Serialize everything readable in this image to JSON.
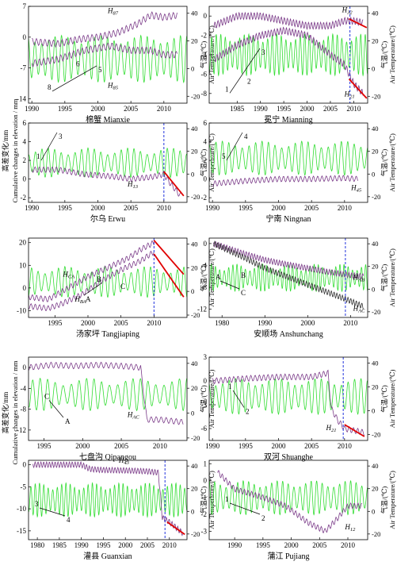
{
  "figure": {
    "left_axis_label_cn": "高差变化/mm",
    "left_axis_label_en": "Cumulative changes in elevation / mm",
    "right_axis_label_cn": "气温/(℃)",
    "right_axis_label_en": "Air Temperature/(℃)"
  },
  "colors": {
    "temp": "#33dd33",
    "elev": "#7a3a88",
    "elev2": "#333333",
    "trend": "#e00000",
    "marker": "#2233dd"
  },
  "chart_data": [
    {
      "type": "line",
      "title": "棉蟹 Mianxie",
      "xlim": [
        1989.5,
        2013.5
      ],
      "xticks": [
        1990,
        1995,
        2000,
        2005,
        2010
      ],
      "ylim": [
        -15,
        7
      ],
      "yticks": [
        -14,
        -7,
        0,
        7
      ],
      "t_lim": [
        -25,
        45
      ],
      "t_ticks": [
        -20,
        0,
        20,
        40
      ],
      "series": [
        {
          "key": "H87",
          "name": "H87",
          "points": [
            [
              1990,
              -1
            ],
            [
              1994,
              -1.5
            ],
            [
              1997,
              -0.5
            ],
            [
              2000,
              0
            ],
            [
              2003,
              1
            ],
            [
              2006,
              3
            ],
            [
              2008,
              5
            ],
            [
              2010,
              4.5
            ],
            [
              2012,
              5
            ]
          ]
        },
        {
          "key": "H85",
          "name": "H85",
          "points": [
            [
              1990,
              -6
            ],
            [
              1994,
              -5
            ],
            [
              1998,
              -3
            ],
            [
              2002,
              -2
            ],
            [
              2005,
              -3
            ],
            [
              2008,
              -3
            ],
            [
              2010,
              -4
            ],
            [
              2012,
              -4
            ]
          ]
        }
      ],
      "temp": {
        "center": 7,
        "amp": 14
      },
      "trend_lines": [],
      "marker_x": null,
      "labels": [
        {
          "text": "H87",
          "x": 2001.5,
          "y": 5.5
        },
        {
          "text": "H85",
          "x": 2001.5,
          "y": -11.5
        }
      ],
      "annotations": [
        "8",
        "6",
        "5"
      ]
    },
    {
      "type": "line",
      "title": "冕宁 Mianning",
      "xlim": [
        1979,
        2013
      ],
      "xticks": [
        1985,
        1990,
        1995,
        2000,
        2005,
        2010
      ],
      "ylim": [
        -9,
        1
      ],
      "yticks": [
        -8,
        -6,
        -4,
        -2,
        0
      ],
      "t_lim": [
        -25,
        45
      ],
      "t_ticks": [
        -20,
        0,
        20,
        40
      ],
      "series": [
        {
          "key": "H32",
          "name": "H32",
          "points": [
            [
              1980,
              -1
            ],
            [
              1985,
              0
            ],
            [
              1990,
              0
            ],
            [
              1995,
              -0.5
            ],
            [
              2000,
              -1
            ],
            [
              2005,
              -1
            ],
            [
              2008,
              -0.5
            ],
            [
              2010,
              -0.5
            ],
            [
              2012,
              -0.7
            ]
          ]
        },
        {
          "key": "H21",
          "name": "H21",
          "points": [
            [
              1980,
              -4.5
            ],
            [
              1985,
              -3
            ],
            [
              1990,
              -2
            ],
            [
              1995,
              -1.5
            ],
            [
              2000,
              -2
            ],
            [
              2005,
              -4
            ],
            [
              2008,
              -5
            ],
            [
              2010,
              -7
            ],
            [
              2012,
              -8
            ]
          ]
        }
      ],
      "temp": {
        "center": 10,
        "amp": 12
      },
      "trend_lines": [
        {
          "x1": 2009,
          "y1": -0.3,
          "x2": 2012.8,
          "y2": -1.2
        },
        {
          "x1": 2009,
          "y1": -6.5,
          "x2": 2012.8,
          "y2": -8.5
        }
      ],
      "marker_x": 2009.2,
      "labels": [
        {
          "text": "H32",
          "x": 2007.5,
          "y": 0.4
        },
        {
          "text": "H21",
          "x": 2008,
          "y": -8.3
        }
      ],
      "annotations": [
        "1",
        "2",
        "3"
      ]
    },
    {
      "type": "line",
      "title": "尔乌 Erwu",
      "xlim": [
        1989.5,
        2013.5
      ],
      "xticks": [
        1990,
        1995,
        2000,
        2005,
        2010
      ],
      "ylim": [
        -2.5,
        6
      ],
      "yticks": [
        -2,
        0,
        2,
        4,
        6
      ],
      "t_lim": [
        -25,
        45
      ],
      "t_ticks": [
        -20,
        0,
        20,
        40
      ],
      "series": [
        {
          "key": "H13",
          "name": "H13",
          "points": [
            [
              1990,
              1
            ],
            [
              1994,
              1
            ],
            [
              1998,
              0.5
            ],
            [
              2002,
              0.3
            ],
            [
              2005,
              0
            ],
            [
              2008,
              0.2
            ],
            [
              2010,
              0.5
            ],
            [
              2011,
              -0.5
            ],
            [
              2012.5,
              -1.8
            ]
          ]
        }
      ],
      "temp": {
        "center": 10,
        "amp": 10
      },
      "trend_lines": [
        {
          "x1": 2010,
          "y1": 0.8,
          "x2": 2013,
          "y2": -1.8
        }
      ],
      "marker_x": 2010,
      "labels": [
        {
          "text": "H13",
          "x": 2004.5,
          "y": -0.8
        }
      ],
      "annotations": [
        "1",
        "3"
      ]
    },
    {
      "type": "line",
      "title": "宁南 Ningnan",
      "xlim": [
        1989.5,
        2013.5
      ],
      "xticks": [
        1990,
        1995,
        2000,
        2005,
        2010
      ],
      "ylim": [
        -2.5,
        6
      ],
      "yticks": [
        -2,
        0,
        2,
        4,
        6
      ],
      "t_lim": [
        -25,
        45
      ],
      "t_ticks": [
        -20,
        0,
        20,
        40
      ],
      "series": [
        {
          "key": "H45",
          "name": "H45",
          "points": [
            [
              1990,
              -0.5
            ],
            [
              1995,
              -0.2
            ],
            [
              2000,
              0
            ],
            [
              2005,
              0
            ],
            [
              2010,
              0.1
            ],
            [
              2012,
              0
            ]
          ]
        }
      ],
      "temp": {
        "center": 14,
        "amp": 12
      },
      "trend_lines": [],
      "marker_x": null,
      "labels": [
        {
          "text": "H45",
          "x": 2011,
          "y": -1.2
        }
      ],
      "annotations": [
        "5",
        "4"
      ]
    },
    {
      "type": "line",
      "title": "汤家坪 Tangjiaping",
      "xlim": [
        1991,
        2015
      ],
      "xticks": [
        1995,
        2000,
        2005,
        2010
      ],
      "ylim": [
        -13,
        22
      ],
      "yticks": [
        -10,
        0,
        10,
        20
      ],
      "t_lim": [
        -22,
        45
      ],
      "t_ticks": [
        -20,
        0,
        20,
        40
      ],
      "series": [
        {
          "key": "HCA",
          "name": "HCA",
          "points": [
            [
              1991,
              -4
            ],
            [
              1994,
              -5
            ],
            [
              1997,
              0
            ],
            [
              2000,
              5
            ],
            [
              2003,
              9
            ],
            [
              2006,
              13
            ],
            [
              2008,
              17
            ],
            [
              2010,
              20
            ]
          ]
        },
        {
          "key": "HBA",
          "name": "HBA",
          "points": [
            [
              1991,
              -8
            ],
            [
              1994,
              -9
            ],
            [
              1996,
              -7
            ],
            [
              1999,
              -3
            ],
            [
              2002,
              3
            ],
            [
              2005,
              8
            ],
            [
              2008,
              12
            ],
            [
              2010,
              16
            ]
          ]
        }
      ],
      "temp": {
        "center": 8,
        "amp": 10
      },
      "trend_lines": [
        {
          "x1": 2010,
          "y1": 21,
          "x2": 2014.5,
          "y2": 6
        },
        {
          "x1": 2010,
          "y1": 15,
          "x2": 2014.5,
          "y2": -4
        }
      ],
      "marker_x": 2010,
      "labels": [
        {
          "text": "HCA",
          "x": 1996.2,
          "y": 5
        },
        {
          "text": "HBA",
          "x": 1998,
          "y": -6
        }
      ],
      "annotations": [
        "B",
        "C",
        "A"
      ]
    },
    {
      "type": "line",
      "title": "安顺场 Anshunchang",
      "xlim": [
        1977,
        2014
      ],
      "xticks": [
        1980,
        1990,
        2000,
        2010
      ],
      "ylim": [
        -13.5,
        1
      ],
      "yticks": [
        -12,
        -8,
        -4,
        0
      ],
      "t_lim": [
        -25,
        45
      ],
      "t_ticks": [
        -20,
        0,
        20,
        40
      ],
      "series": [
        {
          "key": "HAB",
          "name": "HAB",
          "points": [
            [
              1978,
              0
            ],
            [
              1985,
              -1.8
            ],
            [
              1990,
              -3
            ],
            [
              1995,
              -3.8
            ],
            [
              2000,
              -4.5
            ],
            [
              2005,
              -5.2
            ],
            [
              2010,
              -5.8
            ],
            [
              2013,
              -6
            ]
          ]
        },
        {
          "key": "HAC",
          "name": "HAC",
          "points": [
            [
              1978,
              0
            ],
            [
              1985,
              -2.5
            ],
            [
              1990,
              -4.5
            ],
            [
              1995,
              -6
            ],
            [
              2000,
              -7.5
            ],
            [
              2005,
              -9
            ],
            [
              2010,
              -10.5
            ],
            [
              2013,
              -11.5
            ]
          ]
        }
      ],
      "temp": {
        "center": 10,
        "amp": 9
      },
      "trend_lines": [],
      "marker_x": 2008.8,
      "labels": [
        {
          "text": "HAB",
          "x": 2010.6,
          "y": -6.6
        },
        {
          "text": "HAC",
          "x": 2010.6,
          "y": -12.3
        }
      ],
      "annotations": [
        "A",
        "B",
        "C"
      ]
    },
    {
      "type": "line",
      "title": "七盘沟 Qipangou",
      "xlim": [
        1993,
        2013.5
      ],
      "xticks": [
        1995,
        2000,
        2005,
        2010
      ],
      "ylim": [
        -14,
        2
      ],
      "yticks": [
        -12,
        -8,
        -4,
        0
      ],
      "t_lim": [
        -22,
        45
      ],
      "t_ticks": [
        -20,
        0,
        20,
        40
      ],
      "series": [
        {
          "key": "HAC",
          "name": "HAC",
          "points": [
            [
              1993,
              0
            ],
            [
              1996,
              0.5
            ],
            [
              1999,
              0.3
            ],
            [
              2002,
              0.5
            ],
            [
              2005,
              0.3
            ],
            [
              2007.5,
              0
            ],
            [
              2008.3,
              -10
            ],
            [
              2010,
              -10
            ],
            [
              2013,
              -10.5
            ]
          ]
        }
      ],
      "temp": {
        "center": 15,
        "amp": 10
      },
      "trend_lines": [],
      "marker_x": null,
      "labels": [
        {
          "text": "HAC",
          "x": 2005.8,
          "y": -9.5
        }
      ],
      "annotations": [
        "C",
        "A"
      ]
    },
    {
      "type": "line",
      "title": "双河 Shuanghe",
      "xlim": [
        1989.5,
        2013.5
      ],
      "xticks": [
        1990,
        1995,
        2000,
        2005,
        2010
      ],
      "ylim": [
        -7.5,
        3
      ],
      "yticks": [
        -6,
        -3,
        0,
        3
      ],
      "t_lim": [
        -25,
        45
      ],
      "t_ticks": [
        -20,
        0,
        20,
        40
      ],
      "series": [
        {
          "key": "H21",
          "name": "H21",
          "points": [
            [
              1990,
              0
            ],
            [
              1995,
              0.3
            ],
            [
              2000,
              0.5
            ],
            [
              2005,
              0.5
            ],
            [
              2007.5,
              1
            ],
            [
              2008,
              -3.5
            ],
            [
              2009,
              -5
            ],
            [
              2010,
              -6
            ],
            [
              2013,
              -6.5
            ]
          ]
        }
      ],
      "temp": {
        "center": 12,
        "amp": 12
      },
      "trend_lines": [
        {
          "x1": 2010,
          "y1": -5.5,
          "x2": 2013,
          "y2": -7
        }
      ],
      "marker_x": 2009.8,
      "labels": [
        {
          "text": "H21",
          "x": 2007.2,
          "y": -6.2
        }
      ],
      "annotations": [
        "1",
        "2"
      ]
    },
    {
      "type": "line",
      "title": "灌县 Guanxian",
      "xlim": [
        1978,
        2014
      ],
      "xticks": [
        1980,
        1985,
        1990,
        1995,
        2000,
        2005,
        2010
      ],
      "ylim": [
        -17,
        1
      ],
      "yticks": [
        -15,
        -10,
        -5,
        0
      ],
      "t_lim": [
        -25,
        45
      ],
      "t_ticks": [
        -20,
        0,
        20,
        40
      ],
      "series": [
        {
          "key": "H43",
          "name": "H43",
          "points": [
            [
              1979,
              0
            ],
            [
              1985,
              0
            ],
            [
              1990,
              0
            ],
            [
              1992,
              -1
            ],
            [
              1995,
              -1.2
            ],
            [
              2000,
              -1.3
            ],
            [
              2005,
              -1.5
            ],
            [
              2007.5,
              -1.8
            ],
            [
              2008.4,
              -12
            ],
            [
              2010,
              -13
            ],
            [
              2013,
              -15.5
            ]
          ]
        }
      ],
      "temp": {
        "center": 10,
        "amp": 12
      },
      "trend_lines": [
        {
          "x1": 2009.5,
          "y1": -13,
          "x2": 2013.5,
          "y2": -15.8
        }
      ],
      "marker_x": 2009,
      "labels": [
        {
          "text": "H43",
          "x": 1998.5,
          "y": 0.5
        }
      ],
      "annotations": [
        "3",
        "4"
      ]
    },
    {
      "type": "line",
      "title": "蒲江 Pujiang",
      "xlim": [
        1985.5,
        2013.5
      ],
      "xticks": [
        1990,
        1995,
        2000,
        2005,
        2010
      ],
      "ylim": [
        -3.5,
        1.2
      ],
      "yticks": [
        -3,
        -2,
        -1,
        0,
        1
      ],
      "t_lim": [
        -25,
        45
      ],
      "t_ticks": [
        -20,
        0,
        20,
        40
      ],
      "series": [
        {
          "key": "H12",
          "name": "H12",
          "points": [
            [
              1987,
              0.5
            ],
            [
              1990,
              -0.5
            ],
            [
              1995,
              -1
            ],
            [
              1999,
              -1.5
            ],
            [
              2003,
              -2.5
            ],
            [
              2006,
              -3
            ],
            [
              2008,
              -2.3
            ],
            [
              2010,
              -1.5
            ],
            [
              2012.5,
              -1.5
            ]
          ]
        }
      ],
      "temp": {
        "center": 12,
        "amp": 12
      },
      "trend_lines": [],
      "marker_x": null,
      "labels": [
        {
          "text": "H12",
          "x": 2009.5,
          "y": -2.9
        }
      ],
      "annotations": [
        "1",
        "2"
      ]
    }
  ]
}
